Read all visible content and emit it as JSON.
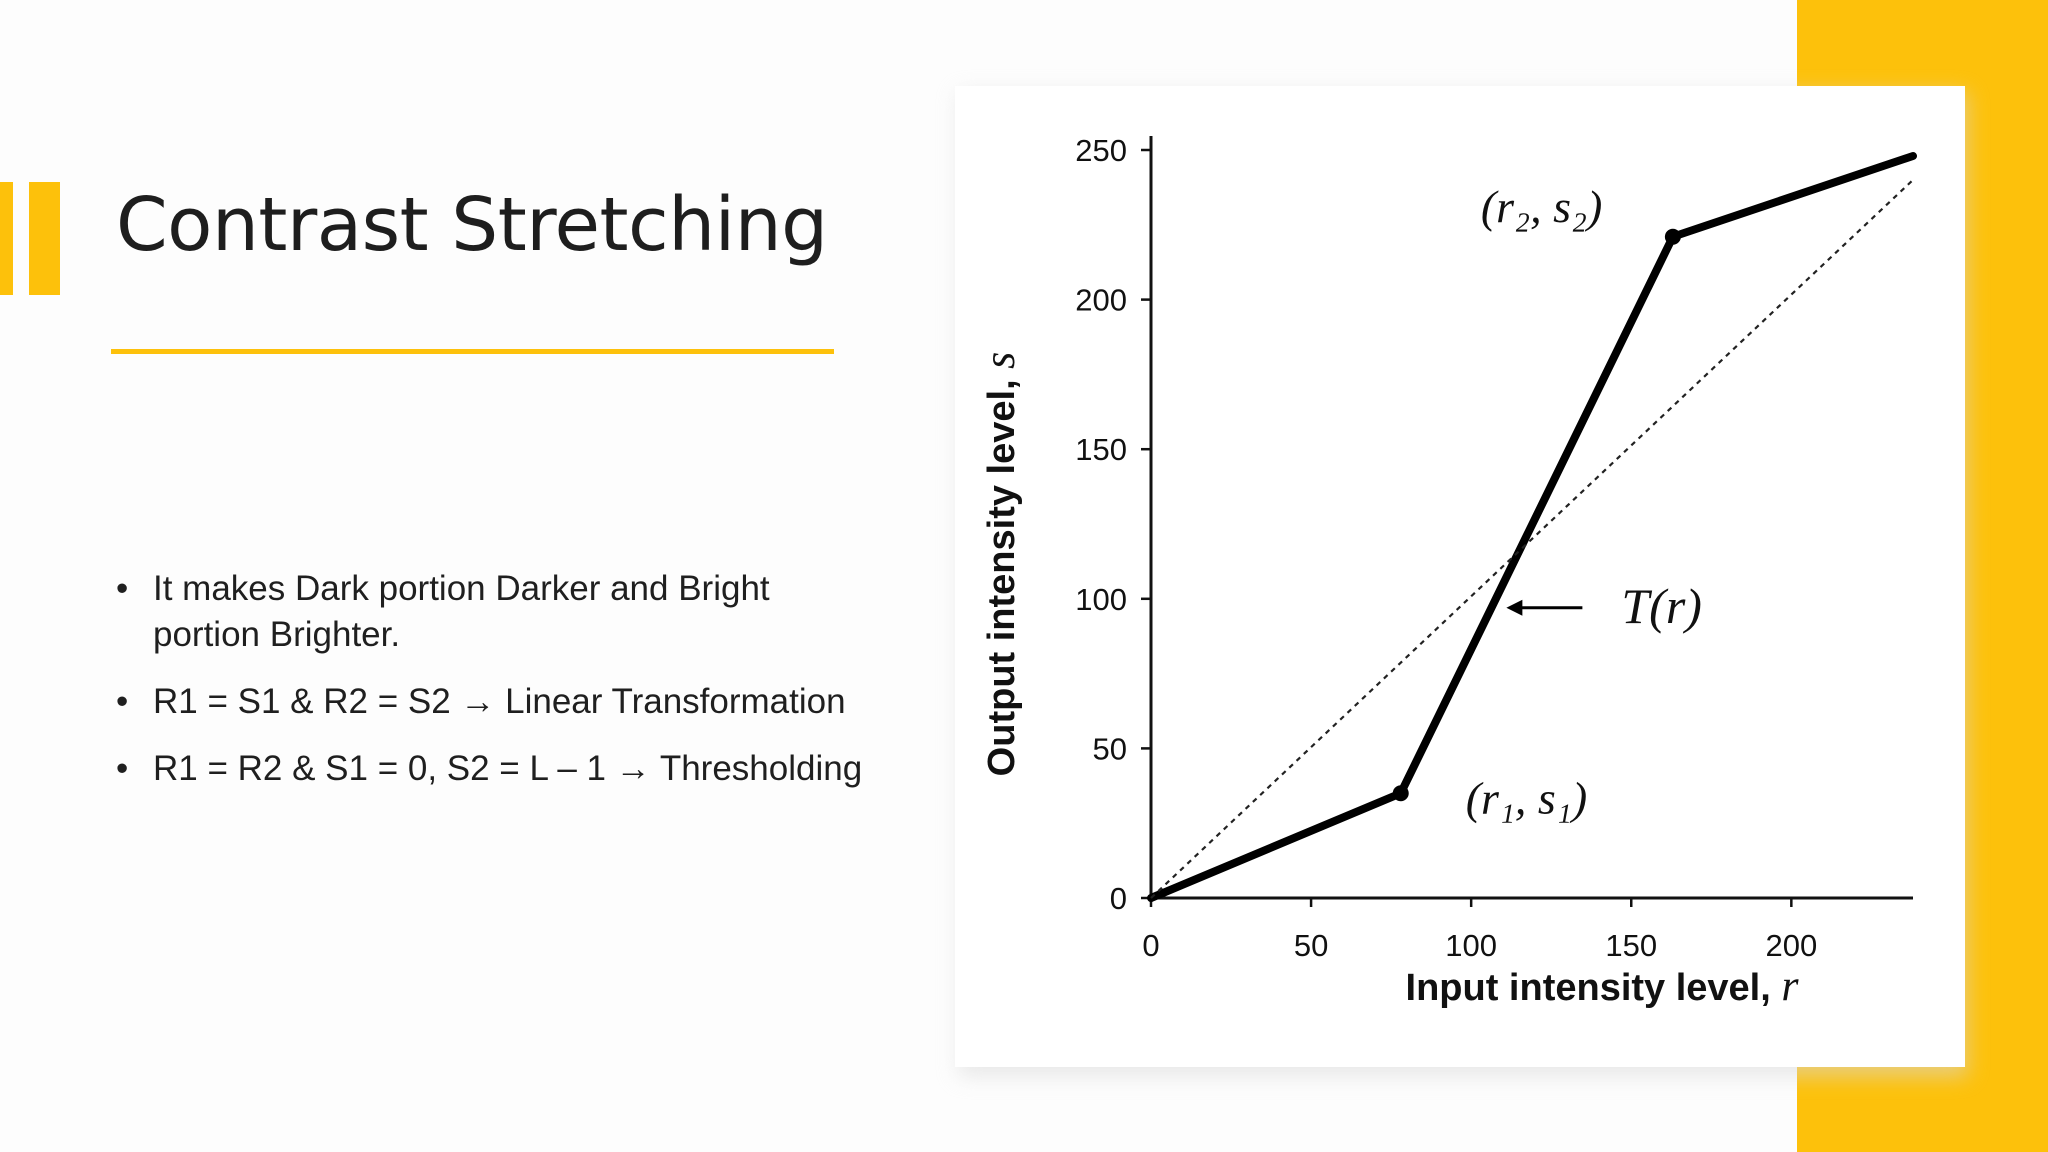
{
  "slide": {
    "title": "Contrast Stretching",
    "bullets": [
      "It makes Dark portion Darker and Bright portion Brighter.",
      "R1 = S1 & R2 = S2 → Linear Transformation",
      "R1 = R2 & S1 = 0, S2 = L – 1 → Thresholding"
    ],
    "bullet_glyph": "•",
    "accent_color": "#fdc10b"
  },
  "chart_data": {
    "type": "line",
    "xlabel": "Input intensity level,",
    "xlabel_var": "r",
    "ylabel": "Output intensity level,",
    "ylabel_var": "s",
    "xlim": [
      0,
      238
    ],
    "ylim": [
      0,
      250
    ],
    "x_ticks": [
      0,
      50,
      100,
      150,
      200
    ],
    "y_ticks": [
      0,
      50,
      100,
      150,
      200,
      250
    ],
    "series": [
      {
        "name": "T(r)",
        "style": "solid-thick",
        "x": [
          0,
          78,
          163,
          238
        ],
        "y": [
          0,
          35,
          221,
          248
        ]
      },
      {
        "name": "",
        "style": "dotted",
        "x": [
          0,
          238
        ],
        "y": [
          0,
          240
        ]
      }
    ],
    "points": [
      {
        "x": 78,
        "y": 35,
        "label": "(r₁, s₁)"
      },
      {
        "x": 163,
        "y": 221,
        "label": "(r₂, s₂)"
      }
    ],
    "annotation": {
      "label": "T(r)",
      "x": 111,
      "y": 97
    }
  }
}
